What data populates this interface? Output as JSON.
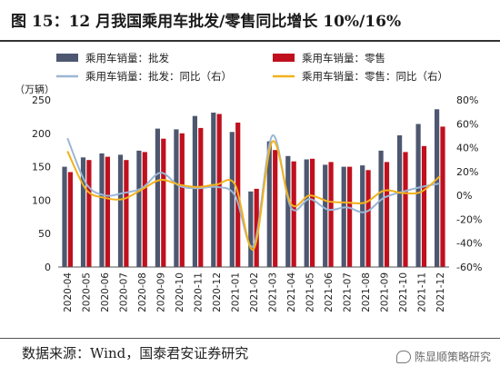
{
  "title": "图 15：12 月我国乘用车批发/零售同比增长 10%/16%",
  "source": "数据来源：Wind，国泰君安证券研究",
  "watermark": "陈显顺策略研究",
  "watermark_icon": "chat-bubble-icon",
  "chart_data": {
    "type": "bar",
    "categories": [
      "2020-04",
      "2020-05",
      "2020-06",
      "2020-07",
      "2020-08",
      "2020-09",
      "2020-10",
      "2020-11",
      "2020-12",
      "2021-01",
      "2021-02",
      "2021-03",
      "2021-04",
      "2021-05",
      "2021-06",
      "2021-07",
      "2021-08",
      "2021-09",
      "2021-10",
      "2021-11",
      "2021-12"
    ],
    "left_unit": "（万辆）",
    "left_ylim": [
      0,
      250
    ],
    "left_ticks": [
      0,
      50,
      100,
      150,
      200,
      250
    ],
    "right_ylim": [
      -0.6,
      0.8
    ],
    "right_ticks": [
      "80%",
      "60%",
      "40%",
      "20%",
      "0%",
      "-20%",
      "-40%",
      "-60%"
    ],
    "right_tick_values": [
      0.8,
      0.6,
      0.4,
      0.2,
      0,
      -0.2,
      -0.4,
      -0.6
    ],
    "series": [
      {
        "name": "乘用车销量：批发",
        "type": "bar",
        "axis": "left",
        "color": "#4d5770",
        "values": [
          150,
          164,
          170,
          168,
          174,
          207,
          206,
          226,
          231,
          202,
          113,
          188,
          166,
          161,
          153,
          150,
          152,
          174,
          197,
          214,
          236
        ]
      },
      {
        "name": "乘用车销量：零售",
        "type": "bar",
        "axis": "left",
        "color": "#c0101e",
        "values": [
          142,
          160,
          165,
          160,
          172,
          192,
          200,
          208,
          229,
          216,
          117,
          175,
          158,
          162,
          157,
          150,
          145,
          157,
          172,
          181,
          210
        ]
      },
      {
        "name": "乘用车销量：批发：同比（右）",
        "type": "line",
        "axis": "right",
        "color": "#9bb6d6",
        "values": [
          0.48,
          0.1,
          0.0,
          0.02,
          0.06,
          0.19,
          0.08,
          0.06,
          0.07,
          0.0,
          -0.42,
          0.5,
          -0.1,
          -0.03,
          -0.12,
          -0.1,
          -0.14,
          -0.02,
          0.03,
          0.07,
          0.1
        ]
      },
      {
        "name": "乘用车销量：零售：同比（右）",
        "type": "line",
        "axis": "right",
        "color": "#f2b21d",
        "values": [
          0.37,
          0.05,
          -0.02,
          -0.03,
          0.05,
          0.13,
          0.09,
          0.07,
          0.09,
          0.09,
          -0.45,
          0.45,
          -0.07,
          0.0,
          -0.05,
          -0.06,
          -0.06,
          0.04,
          0.02,
          0.03,
          0.16
        ]
      }
    ],
    "grid": false,
    "legend": "top"
  }
}
